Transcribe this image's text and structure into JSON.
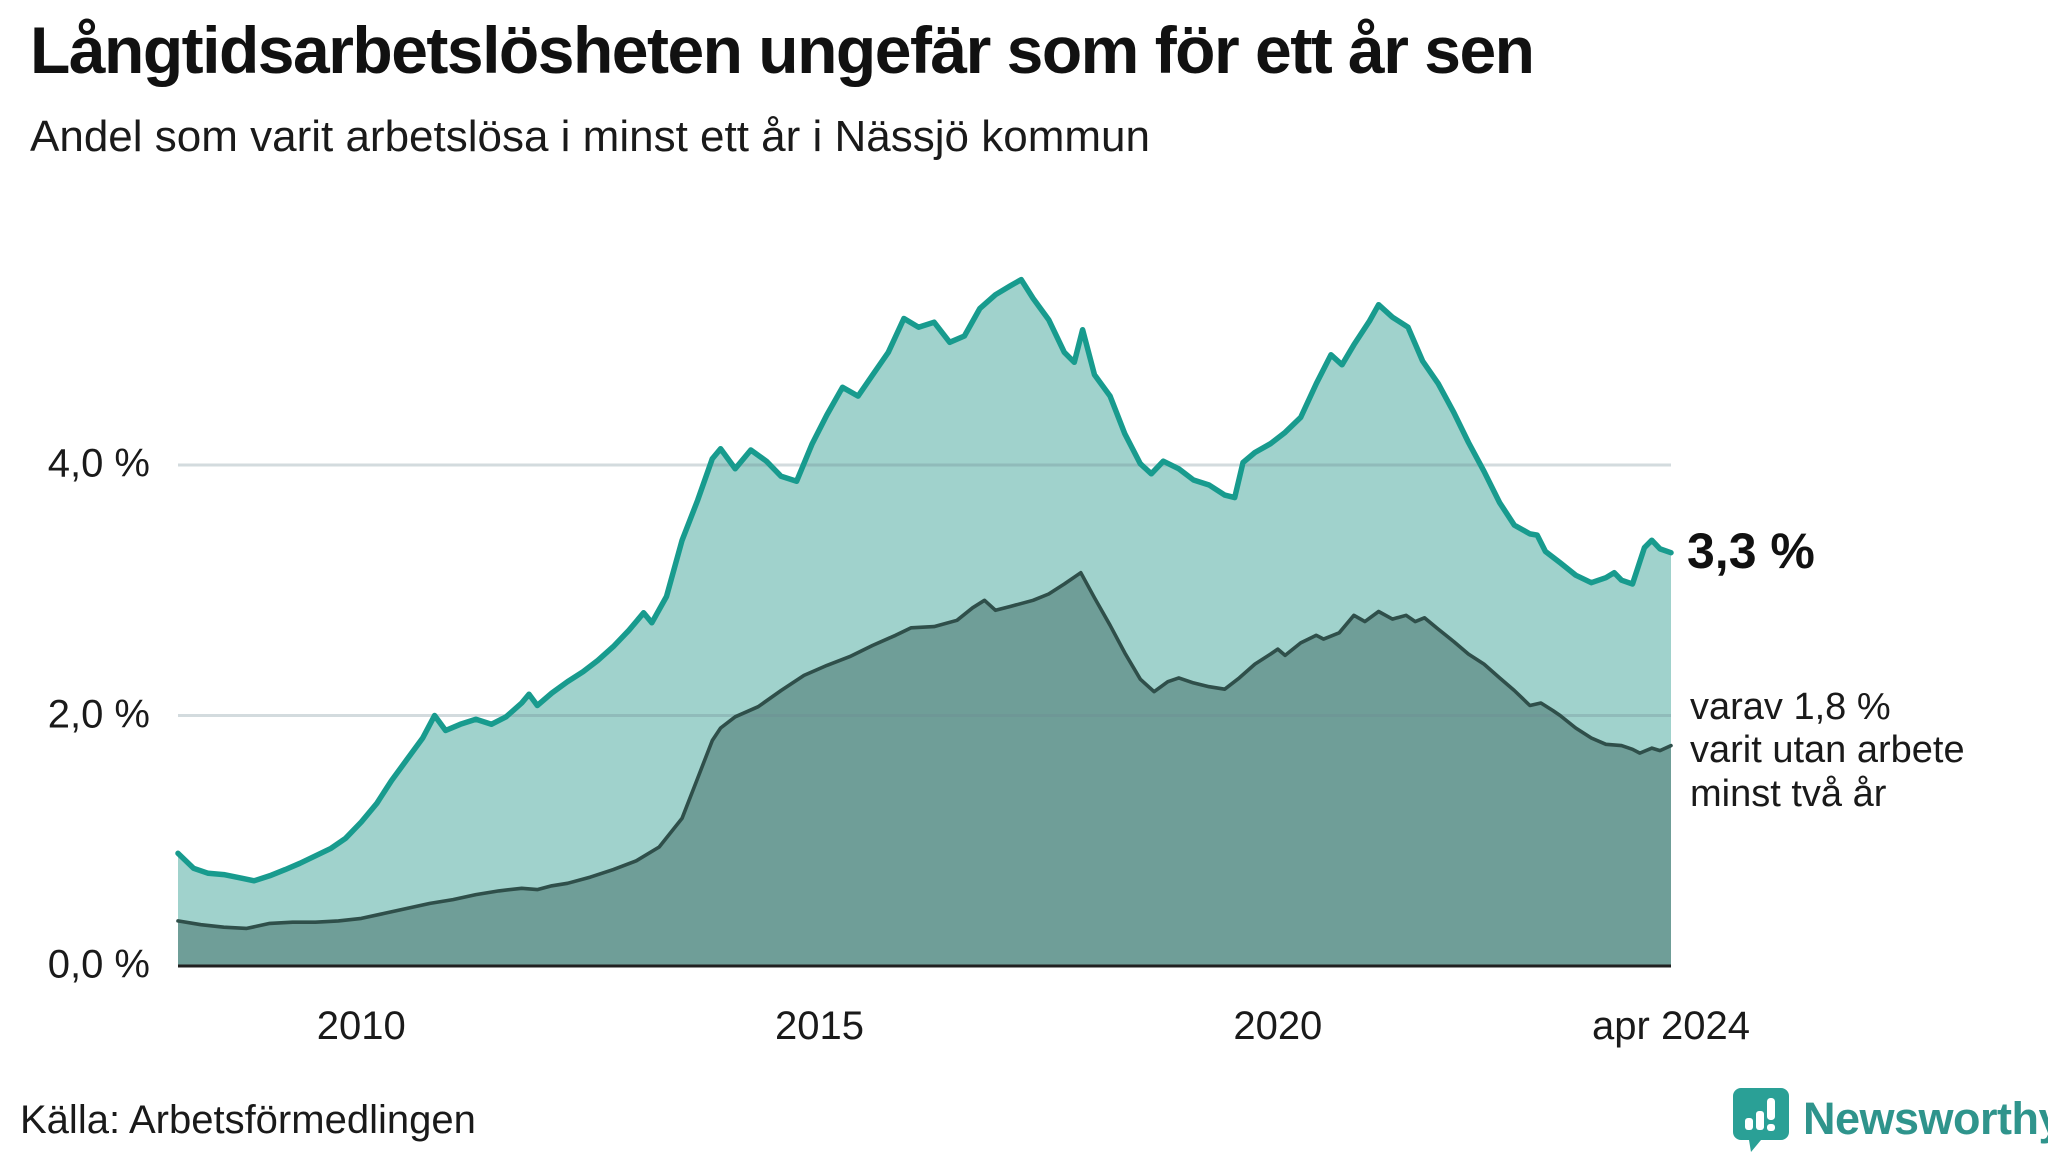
{
  "header": {
    "title": "Långtidsarbetslösheten ungefär som för ett år sen",
    "subtitle": "Andel som varit arbetslösa i minst ett år i Nässjö kommun"
  },
  "annotations": {
    "latest_total": "3,3 %",
    "note_lines": [
      "varav 1,8 %",
      "varit utan arbete",
      "minst två år"
    ]
  },
  "source": "Källa: Arbetsförmedlingen",
  "logo": {
    "text": "Newsworthy",
    "icon": "newsworthy-speech-bubble-bar-chart-icon"
  },
  "colors": {
    "line_one_year": "#189b8e",
    "fill_one_year": "#a0d2cc",
    "line_two_years": "#2f4f4a",
    "fill_two_years": "#6f9e98",
    "gridline": "#e3e4e8",
    "axis": "#202020",
    "text": "#1a1a1a",
    "brand_teal": "#2f948c",
    "logo_icon": "#2aa096"
  },
  "chart_data": {
    "type": "area",
    "title": "Långtidsarbetslösheten ungefär som för ett år sen",
    "subtitle": "Andel som varit arbetslösa i minst ett år i Nässjö kommun",
    "unit": "%",
    "x_start": 2008.0,
    "x_end": 2024.29,
    "ylim": [
      0,
      6.1
    ],
    "grid_values": [
      2,
      4
    ],
    "legend_position": "none",
    "yticks": [
      {
        "value": 0,
        "label": "0,0 %"
      },
      {
        "value": 2,
        "label": "2,0 %"
      },
      {
        "value": 4,
        "label": "4,0 %"
      }
    ],
    "xticks": [
      {
        "year": 2010,
        "label": "2010"
      },
      {
        "year": 2015,
        "label": "2015"
      },
      {
        "year": 2020,
        "label": "2020"
      },
      {
        "year": 2024.29,
        "label": "apr 2024"
      }
    ],
    "series": [
      {
        "name": "Andel arbetslösa minst ett år",
        "end_label": "3,3 %",
        "line_color": "#189b8e",
        "fill_color": "#a0d2cc",
        "line_width": 5.5,
        "points": [
          [
            2008.0,
            0.9
          ],
          [
            2008.17,
            0.78
          ],
          [
            2008.33,
            0.74
          ],
          [
            2008.5,
            0.73
          ],
          [
            2008.7,
            0.7
          ],
          [
            2008.83,
            0.68
          ],
          [
            2009.0,
            0.72
          ],
          [
            2009.17,
            0.77
          ],
          [
            2009.33,
            0.82
          ],
          [
            2009.5,
            0.88
          ],
          [
            2009.67,
            0.94
          ],
          [
            2009.83,
            1.02
          ],
          [
            2010.0,
            1.15
          ],
          [
            2010.17,
            1.3
          ],
          [
            2010.33,
            1.48
          ],
          [
            2010.5,
            1.65
          ],
          [
            2010.67,
            1.82
          ],
          [
            2010.8,
            2.0
          ],
          [
            2010.92,
            1.88
          ],
          [
            2011.08,
            1.93
          ],
          [
            2011.25,
            1.97
          ],
          [
            2011.42,
            1.93
          ],
          [
            2011.58,
            1.99
          ],
          [
            2011.75,
            2.1
          ],
          [
            2011.83,
            2.17
          ],
          [
            2011.92,
            2.08
          ],
          [
            2012.08,
            2.18
          ],
          [
            2012.25,
            2.27
          ],
          [
            2012.42,
            2.35
          ],
          [
            2012.58,
            2.44
          ],
          [
            2012.75,
            2.55
          ],
          [
            2012.92,
            2.68
          ],
          [
            2013.08,
            2.82
          ],
          [
            2013.17,
            2.74
          ],
          [
            2013.33,
            2.95
          ],
          [
            2013.5,
            3.4
          ],
          [
            2013.67,
            3.72
          ],
          [
            2013.83,
            4.05
          ],
          [
            2013.92,
            4.13
          ],
          [
            2014.08,
            3.97
          ],
          [
            2014.25,
            4.12
          ],
          [
            2014.42,
            4.03
          ],
          [
            2014.58,
            3.91
          ],
          [
            2014.75,
            3.87
          ],
          [
            2014.92,
            4.17
          ],
          [
            2015.08,
            4.4
          ],
          [
            2015.25,
            4.62
          ],
          [
            2015.42,
            4.55
          ],
          [
            2015.58,
            4.72
          ],
          [
            2015.75,
            4.9
          ],
          [
            2015.92,
            5.17
          ],
          [
            2016.08,
            5.1
          ],
          [
            2016.25,
            5.14
          ],
          [
            2016.42,
            4.98
          ],
          [
            2016.58,
            5.03
          ],
          [
            2016.75,
            5.25
          ],
          [
            2016.92,
            5.36
          ],
          [
            2017.08,
            5.43
          ],
          [
            2017.2,
            5.48
          ],
          [
            2017.33,
            5.33
          ],
          [
            2017.5,
            5.16
          ],
          [
            2017.67,
            4.9
          ],
          [
            2017.78,
            4.82
          ],
          [
            2017.87,
            5.08
          ],
          [
            2018.0,
            4.72
          ],
          [
            2018.17,
            4.55
          ],
          [
            2018.33,
            4.25
          ],
          [
            2018.5,
            4.01
          ],
          [
            2018.62,
            3.93
          ],
          [
            2018.75,
            4.03
          ],
          [
            2018.92,
            3.97
          ],
          [
            2019.08,
            3.88
          ],
          [
            2019.25,
            3.84
          ],
          [
            2019.42,
            3.76
          ],
          [
            2019.53,
            3.74
          ],
          [
            2019.62,
            4.02
          ],
          [
            2019.75,
            4.1
          ],
          [
            2019.92,
            4.17
          ],
          [
            2020.08,
            4.26
          ],
          [
            2020.25,
            4.38
          ],
          [
            2020.42,
            4.65
          ],
          [
            2020.58,
            4.88
          ],
          [
            2020.7,
            4.8
          ],
          [
            2020.83,
            4.96
          ],
          [
            2021.0,
            5.15
          ],
          [
            2021.1,
            5.28
          ],
          [
            2021.25,
            5.18
          ],
          [
            2021.42,
            5.1
          ],
          [
            2021.58,
            4.83
          ],
          [
            2021.75,
            4.65
          ],
          [
            2021.92,
            4.42
          ],
          [
            2022.08,
            4.18
          ],
          [
            2022.25,
            3.95
          ],
          [
            2022.42,
            3.7
          ],
          [
            2022.58,
            3.52
          ],
          [
            2022.75,
            3.45
          ],
          [
            2022.83,
            3.44
          ],
          [
            2022.92,
            3.31
          ],
          [
            2023.08,
            3.22
          ],
          [
            2023.25,
            3.12
          ],
          [
            2023.42,
            3.06
          ],
          [
            2023.58,
            3.1
          ],
          [
            2023.67,
            3.14
          ],
          [
            2023.75,
            3.08
          ],
          [
            2023.87,
            3.05
          ],
          [
            2024.0,
            3.34
          ],
          [
            2024.08,
            3.4
          ],
          [
            2024.17,
            3.33
          ],
          [
            2024.29,
            3.3
          ]
        ]
      },
      {
        "name": "varav utan arbete minst två år",
        "end_label": "1,8 %",
        "line_color": "#2f4f4a",
        "fill_color": "#6f9e98",
        "line_width": 3.6,
        "points": [
          [
            2008.0,
            0.36
          ],
          [
            2008.25,
            0.33
          ],
          [
            2008.5,
            0.31
          ],
          [
            2008.75,
            0.3
          ],
          [
            2009.0,
            0.34
          ],
          [
            2009.25,
            0.35
          ],
          [
            2009.5,
            0.35
          ],
          [
            2009.75,
            0.36
          ],
          [
            2010.0,
            0.38
          ],
          [
            2010.25,
            0.42
          ],
          [
            2010.5,
            0.46
          ],
          [
            2010.75,
            0.5
          ],
          [
            2011.0,
            0.53
          ],
          [
            2011.25,
            0.57
          ],
          [
            2011.5,
            0.6
          ],
          [
            2011.75,
            0.62
          ],
          [
            2011.92,
            0.61
          ],
          [
            2012.08,
            0.64
          ],
          [
            2012.25,
            0.66
          ],
          [
            2012.5,
            0.71
          ],
          [
            2012.75,
            0.77
          ],
          [
            2013.0,
            0.84
          ],
          [
            2013.25,
            0.95
          ],
          [
            2013.5,
            1.18
          ],
          [
            2013.67,
            1.5
          ],
          [
            2013.83,
            1.8
          ],
          [
            2013.92,
            1.9
          ],
          [
            2014.08,
            1.99
          ],
          [
            2014.33,
            2.07
          ],
          [
            2014.58,
            2.2
          ],
          [
            2014.83,
            2.32
          ],
          [
            2015.08,
            2.4
          ],
          [
            2015.33,
            2.47
          ],
          [
            2015.58,
            2.56
          ],
          [
            2015.83,
            2.64
          ],
          [
            2016.0,
            2.7
          ],
          [
            2016.25,
            2.71
          ],
          [
            2016.5,
            2.76
          ],
          [
            2016.67,
            2.86
          ],
          [
            2016.8,
            2.92
          ],
          [
            2016.92,
            2.84
          ],
          [
            2017.08,
            2.87
          ],
          [
            2017.33,
            2.92
          ],
          [
            2017.5,
            2.97
          ],
          [
            2017.67,
            3.05
          ],
          [
            2017.85,
            3.14
          ],
          [
            2018.0,
            2.94
          ],
          [
            2018.17,
            2.72
          ],
          [
            2018.33,
            2.5
          ],
          [
            2018.5,
            2.29
          ],
          [
            2018.65,
            2.19
          ],
          [
            2018.8,
            2.27
          ],
          [
            2018.92,
            2.3
          ],
          [
            2019.08,
            2.26
          ],
          [
            2019.25,
            2.23
          ],
          [
            2019.42,
            2.21
          ],
          [
            2019.58,
            2.3
          ],
          [
            2019.75,
            2.41
          ],
          [
            2019.92,
            2.49
          ],
          [
            2020.0,
            2.53
          ],
          [
            2020.08,
            2.48
          ],
          [
            2020.25,
            2.58
          ],
          [
            2020.42,
            2.64
          ],
          [
            2020.5,
            2.61
          ],
          [
            2020.67,
            2.66
          ],
          [
            2020.83,
            2.8
          ],
          [
            2020.95,
            2.75
          ],
          [
            2021.1,
            2.83
          ],
          [
            2021.25,
            2.77
          ],
          [
            2021.4,
            2.8
          ],
          [
            2021.5,
            2.75
          ],
          [
            2021.6,
            2.78
          ],
          [
            2021.75,
            2.69
          ],
          [
            2021.92,
            2.59
          ],
          [
            2022.08,
            2.49
          ],
          [
            2022.25,
            2.41
          ],
          [
            2022.42,
            2.3
          ],
          [
            2022.58,
            2.2
          ],
          [
            2022.75,
            2.08
          ],
          [
            2022.87,
            2.1
          ],
          [
            2023.0,
            2.04
          ],
          [
            2023.08,
            2.0
          ],
          [
            2023.25,
            1.9
          ],
          [
            2023.42,
            1.82
          ],
          [
            2023.58,
            1.77
          ],
          [
            2023.75,
            1.76
          ],
          [
            2023.87,
            1.73
          ],
          [
            2023.95,
            1.7
          ],
          [
            2024.08,
            1.74
          ],
          [
            2024.17,
            1.72
          ],
          [
            2024.29,
            1.76
          ]
        ]
      }
    ]
  }
}
